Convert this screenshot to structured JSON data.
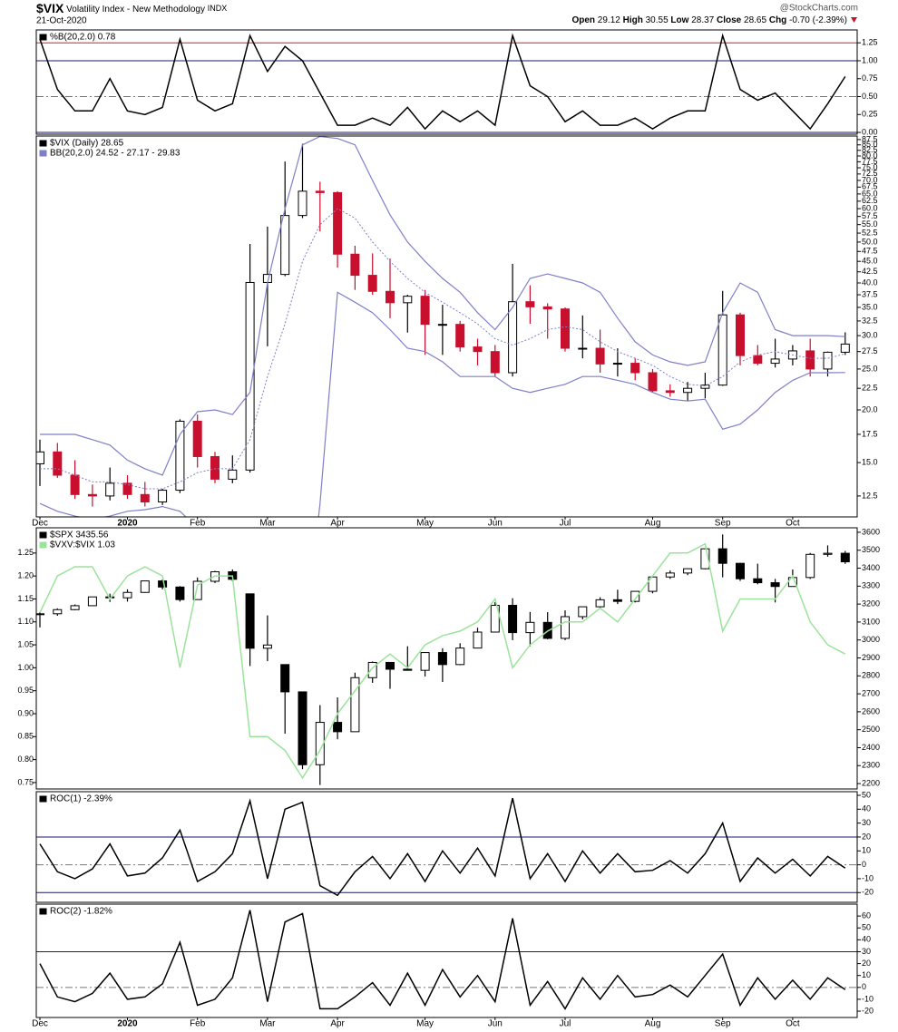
{
  "header": {
    "symbol": "$VIX",
    "name": "Volatility Index - New Methodology",
    "exchange": "INDX",
    "date": "21-Oct-2020",
    "credit": "@StockCharts.com",
    "quote": [
      {
        "label": "Open",
        "value": 29.12
      },
      {
        "label": "High",
        "value": 30.55
      },
      {
        "label": "Low",
        "value": 28.37
      },
      {
        "label": "Close",
        "value": 28.65
      },
      {
        "label": "Chg",
        "value": "-0.70 (-2.39%)"
      }
    ]
  },
  "chart_data": [
    {
      "type": "line",
      "y_axis_side": "right",
      "ylim": [
        -0.025,
        1.43
      ],
      "yticks": [
        {
          "value": 0,
          "label": "0.00"
        },
        0.25,
        {
          "value": 0.5,
          "label": "0.50"
        },
        0.75,
        {
          "value": 1,
          "label": "1.00"
        },
        1.25
      ],
      "ref_lines": [
        {
          "value": 1.25,
          "color": "#d42020"
        },
        {
          "value": 1,
          "color": "#1a1a70"
        },
        {
          "value": 0.5,
          "color": "#777777",
          "dash": "8 3 2 3"
        },
        {
          "value": 0,
          "color": "#1a1a70"
        }
      ],
      "series": [
        {
          "name": "%B(20,2.0) 0.78",
          "color": "#000000",
          "values": [
            1.3,
            0.6,
            0.3,
            0.3,
            0.75,
            0.3,
            0.25,
            0.35,
            1.3,
            0.45,
            0.3,
            0.4,
            1.35,
            0.85,
            1.2,
            1.0,
            0.55,
            0.1,
            0.1,
            0.2,
            0.1,
            0.35,
            0.05,
            0.3,
            0.15,
            0.3,
            0.1,
            1.35,
            0.65,
            0.5,
            0.15,
            0.3,
            0.1,
            0.1,
            0.2,
            0.05,
            0.2,
            0.3,
            0.3,
            1.35,
            0.6,
            0.45,
            0.55,
            0.3,
            0.05,
            0.4,
            0.78
          ]
        }
      ]
    },
    {
      "type": "candlestick",
      "log": true,
      "y_axis_side": "right",
      "ylim": [
        11.15,
        89.2
      ],
      "yticks": [
        12.5,
        {
          "value": 15,
          "label": "15.0"
        },
        17.5,
        {
          "value": 20,
          "label": "20.0"
        },
        22.5,
        {
          "value": 25,
          "label": "25.0"
        },
        27.5,
        {
          "value": 30,
          "label": "30.0"
        },
        32.5,
        {
          "value": 35,
          "label": "35.0"
        },
        37.5,
        {
          "value": 40,
          "label": "40.0"
        },
        42.5,
        {
          "value": 45,
          "label": "45.0"
        },
        47.5,
        {
          "value": 50,
          "label": "50.0"
        },
        52.5,
        {
          "value": 55,
          "label": "55.0"
        },
        57.5,
        {
          "value": 60,
          "label": "60.0"
        },
        62.5,
        {
          "value": 65,
          "label": "65.0"
        },
        67.5,
        {
          "value": 70,
          "label": "70.0"
        },
        72.5,
        {
          "value": 75,
          "label": "75.0"
        },
        77.5,
        {
          "value": 80,
          "label": "80.0"
        },
        82.5,
        {
          "value": 85,
          "label": "85.0"
        },
        87.5
      ],
      "categories": [
        "Dec",
        null,
        null,
        null,
        null,
        "2020",
        null,
        null,
        null,
        "Feb",
        null,
        null,
        null,
        "Mar",
        null,
        null,
        null,
        "Apr",
        null,
        null,
        null,
        null,
        "May",
        null,
        null,
        null,
        "Jun",
        null,
        null,
        null,
        "Jul",
        null,
        null,
        null,
        null,
        "Aug",
        null,
        null,
        null,
        "Sep",
        null,
        null,
        null,
        "Oct",
        null,
        null,
        null
      ],
      "series": [
        {
          "name": "$VIX (Daily) 28.65",
          "type": "candlestick",
          "up_color": "#ffffff",
          "down_color": "#c8102e",
          "color": "#000000",
          "open": [
            14.9,
            15.9,
            14.0,
            12.6,
            12.5,
            13.4,
            12.6,
            12.1,
            12.9,
            18.8,
            15.5,
            13.7,
            14.4,
            40.1,
            41.9,
            57.8,
            66.0,
            65.5,
            46.8,
            41.7,
            38.2,
            35.9,
            37.2,
            31.9,
            31.9,
            28.2,
            27.5,
            24.5,
            36.1,
            35.1,
            34.7,
            28.0,
            28.0,
            25.7,
            25.8,
            24.5,
            22.2,
            22.0,
            22.5,
            22.9,
            33.6,
            26.9,
            25.8,
            26.4,
            27.6,
            25.0,
            27.4
          ],
          "high": [
            17.0,
            16.7,
            15.2,
            13.3,
            14.6,
            14.0,
            13.5,
            13.0,
            19.0,
            19.5,
            15.9,
            15.6,
            49.5,
            54.4,
            77.6,
            85.5,
            69.5,
            66.0,
            49.0,
            47.0,
            45.7,
            37.5,
            38.5,
            35.5,
            32.5,
            29.5,
            28.5,
            44.4,
            39.5,
            35.8,
            35.0,
            33.5,
            31.0,
            28.0,
            26.5,
            25.0,
            23.0,
            23.3,
            24.5,
            38.3,
            34.0,
            28.5,
            29.5,
            28.5,
            29.5,
            27.5,
            30.55
          ],
          "low": [
            13.2,
            13.8,
            12.3,
            11.8,
            12.2,
            12.3,
            11.8,
            11.9,
            12.7,
            14.6,
            13.4,
            13.4,
            14.2,
            28.3,
            41.5,
            57.0,
            53.0,
            43.5,
            38.5,
            37.5,
            33.0,
            30.5,
            27.0,
            27.0,
            27.5,
            25.5,
            24.0,
            24.0,
            32.0,
            29.5,
            27.5,
            26.5,
            24.5,
            24.0,
            23.5,
            22.0,
            21.5,
            21.0,
            21.3,
            22.8,
            25.5,
            25.5,
            25.2,
            25.5,
            24.0,
            24.0,
            27.0
          ],
          "close": [
            15.9,
            14.0,
            12.6,
            12.5,
            13.4,
            12.6,
            12.1,
            12.9,
            18.8,
            15.5,
            13.7,
            14.4,
            40.1,
            41.9,
            57.8,
            66.0,
            65.5,
            46.8,
            41.7,
            38.2,
            35.9,
            37.2,
            31.9,
            31.9,
            28.2,
            27.5,
            24.5,
            36.1,
            35.1,
            34.7,
            28.0,
            28.0,
            25.7,
            25.8,
            24.5,
            22.2,
            22.0,
            22.5,
            22.9,
            33.6,
            26.9,
            25.8,
            26.4,
            27.6,
            25.0,
            27.4,
            28.65
          ]
        },
        {
          "name": "BB(20,2.0) 24.52 - 27.17 - 29.83",
          "type": "bands",
          "color": "#7f7fc8",
          "upper": [
            17.5,
            17.5,
            17.5,
            17.0,
            16.5,
            15.2,
            14.5,
            14.0,
            17.5,
            19.8,
            20,
            19.5,
            22,
            40,
            60,
            85,
            89,
            88,
            85,
            70,
            58,
            50,
            45,
            41,
            38,
            34,
            31,
            35,
            41,
            42,
            41,
            40,
            38,
            33,
            29,
            27,
            26,
            25.5,
            26,
            34,
            40,
            38,
            31,
            30,
            30,
            30,
            29.83
          ],
          "middle": [
            14.5,
            14.5,
            14.0,
            13.5,
            13.5,
            13.3,
            13.0,
            13.0,
            13.5,
            14.2,
            14.5,
            14.5,
            17,
            24,
            32,
            45,
            55,
            60,
            57,
            50,
            45,
            41,
            38,
            36,
            34,
            32,
            29.5,
            28.5,
            29.5,
            31,
            31.5,
            31,
            29,
            27.5,
            26.5,
            25.5,
            24,
            23,
            22.8,
            24,
            26,
            27,
            27.5,
            27,
            26.5,
            26.5,
            27.17
          ],
          "lower": [
            12,
            11.5,
            11.2,
            11.0,
            11.2,
            11.5,
            11.6,
            11.8,
            11.5,
            10.5,
            10.5,
            11,
            10,
            8,
            5,
            5,
            12,
            38,
            36,
            34,
            31,
            28,
            27.5,
            26,
            24,
            24,
            24,
            22.5,
            22,
            22.5,
            23,
            24,
            24,
            23.5,
            23,
            22,
            21.2,
            21,
            21.2,
            18,
            18.5,
            20,
            22,
            23.5,
            24.5,
            24.5,
            24.52
          ]
        }
      ]
    },
    {
      "type": "candlestick",
      "y_axis_side": "left",
      "ylim": [
        0.736,
        1.305
      ],
      "yticks": [
        0.75,
        {
          "value": 0.8,
          "label": "0.80"
        },
        0.85,
        {
          "value": 0.9,
          "label": "0.90"
        },
        0.95,
        {
          "value": 1,
          "label": "1.00"
        },
        1.05,
        {
          "value": 1.1,
          "label": "1.10"
        },
        1.15,
        {
          "value": 1.2,
          "label": "1.20"
        },
        1.25
      ],
      "y2lim": [
        2170,
        3625
      ],
      "y2ticks": [
        2200,
        2300,
        2400,
        2500,
        2600,
        2700,
        2800,
        2900,
        3000,
        3100,
        3200,
        3300,
        3400,
        3500,
        3600
      ],
      "series": [
        {
          "name": "$SPX 3435.56",
          "type": "candlestick",
          "axis": "y2",
          "up_color": "#ffffff",
          "down_color": "#000000",
          "color": "#000000",
          "open": [
            3144,
            3146,
            3169,
            3191,
            3240,
            3235,
            3265,
            3329,
            3295,
            3225,
            3327,
            3380,
            3257,
            2954,
            2863,
            2711,
            2305,
            2541,
            2489,
            2790,
            2875,
            2837,
            2831,
            2930,
            2863,
            2955,
            3044,
            3193,
            3041,
            3098,
            3009,
            3130,
            3185,
            3224,
            3215,
            3271,
            3351,
            3373,
            3397,
            3508,
            3427,
            3341,
            3319,
            3298,
            3348,
            3477,
            3483
          ],
          "high": [
            3155,
            3176,
            3198,
            3240,
            3258,
            3282,
            3330,
            3337,
            3300,
            3348,
            3385,
            3393,
            3259,
            3137,
            2863,
            2711,
            2637,
            2680,
            2818,
            2880,
            2876,
            2965,
            2932,
            2954,
            2982,
            3068,
            3211,
            3233,
            3156,
            3155,
            3165,
            3186,
            3238,
            3280,
            3272,
            3352,
            3387,
            3399,
            3509,
            3588,
            3430,
            3425,
            3340,
            3393,
            3485,
            3527,
            3496
          ],
          "low": [
            3070,
            3135,
            3166,
            3189,
            3212,
            3214,
            3263,
            3282,
            3214,
            3224,
            3317,
            3328,
            2855,
            2882,
            2478,
            2280,
            2192,
            2447,
            2489,
            2761,
            2728,
            2830,
            2797,
            2766,
            2860,
            2955,
            3044,
            2999,
            2965,
            3004,
            2999,
            3115,
            3180,
            3200,
            3209,
            3260,
            3340,
            3361,
            3394,
            3349,
            3329,
            3310,
            3209,
            3297,
            3340,
            3464,
            3424
          ],
          "close": [
            3146,
            3169,
            3191,
            3240,
            3235,
            3265,
            3329,
            3295,
            3225,
            3327,
            3380,
            3338,
            2954,
            2972,
            2711,
            2305,
            2541,
            2489,
            2790,
            2875,
            2837,
            2831,
            2930,
            2863,
            2955,
            3044,
            3193,
            3041,
            3098,
            3009,
            3130,
            3185,
            3224,
            3215,
            3271,
            3351,
            3373,
            3397,
            3508,
            3427,
            3341,
            3319,
            3298,
            3348,
            3477,
            3483,
            3435.56
          ]
        },
        {
          "name": "$VXV:$VIX 1.03",
          "type": "line",
          "axis": "y",
          "color": "#9be39b",
          "values": [
            1.12,
            1.2,
            1.22,
            1.22,
            1.15,
            1.2,
            1.22,
            1.2,
            1.0,
            1.18,
            1.2,
            1.2,
            0.85,
            0.85,
            0.82,
            0.76,
            0.82,
            0.9,
            0.95,
            1.0,
            1.03,
            1.0,
            1.05,
            1.07,
            1.08,
            1.1,
            1.15,
            1.0,
            1.05,
            1.08,
            1.1,
            1.1,
            1.13,
            1.1,
            1.15,
            1.2,
            1.25,
            1.25,
            1.27,
            1.08,
            1.15,
            1.15,
            1.15,
            1.2,
            1.1,
            1.05,
            1.03
          ]
        }
      ]
    },
    {
      "type": "line",
      "y_axis_side": "right",
      "ylim": [
        -27,
        52.6
      ],
      "yticks": [
        -20,
        -10,
        0,
        10,
        20,
        30,
        40,
        50
      ],
      "ref_lines": [
        {
          "value": 20,
          "color": "#1a1a70"
        },
        {
          "value": -20,
          "color": "#1a1a70"
        },
        {
          "value": 0,
          "color": "#777777",
          "dash": "8 3 2 3"
        }
      ],
      "series": [
        {
          "name": "ROC(1) -2.39%",
          "color": "#000000",
          "values": [
            15,
            -5,
            -10,
            -3,
            15,
            -8,
            -6,
            5,
            25,
            -12,
            -5,
            8,
            46,
            -10,
            40,
            45,
            -15,
            -22,
            -5,
            6,
            -10,
            8,
            -12,
            10,
            -6,
            12,
            -8,
            48,
            -10,
            8,
            -12,
            10,
            -6,
            8,
            -5,
            -4,
            3,
            -6,
            8,
            30,
            -12,
            5,
            -6,
            4,
            -8,
            6,
            -2.39
          ]
        }
      ]
    },
    {
      "type": "line",
      "y_axis_side": "right",
      "ylim": [
        -25.3,
        70
      ],
      "yticks": [
        -20,
        -10,
        0,
        10,
        20,
        30,
        40,
        50,
        60
      ],
      "ref_lines": [
        {
          "value": 30,
          "color": "#1a1a70"
        },
        {
          "value": 0,
          "color": "#777777",
          "dash": "8 3 2 3"
        }
      ],
      "categories": [
        "Dec",
        null,
        null,
        null,
        null,
        "2020",
        null,
        null,
        null,
        "Feb",
        null,
        null,
        null,
        "Mar",
        null,
        null,
        null,
        "Apr",
        null,
        null,
        null,
        null,
        "May",
        null,
        null,
        null,
        "Jun",
        null,
        null,
        null,
        "Jul",
        null,
        null,
        null,
        null,
        "Aug",
        null,
        null,
        null,
        "Sep",
        null,
        null,
        null,
        "Oct",
        null,
        null,
        null
      ],
      "series": [
        {
          "name": "ROC(2) -1.82%",
          "color": "#000000",
          "values": [
            20,
            -8,
            -12,
            -5,
            12,
            -10,
            -8,
            3,
            38,
            -15,
            -10,
            8,
            65,
            -12,
            55,
            62,
            -18,
            -18,
            -8,
            4,
            -15,
            12,
            -15,
            15,
            -8,
            10,
            -12,
            58,
            -15,
            5,
            -18,
            8,
            -10,
            10,
            -8,
            -6,
            2,
            -8,
            10,
            28,
            -15,
            8,
            -10,
            6,
            -10,
            8,
            -1.82
          ]
        }
      ]
    }
  ]
}
